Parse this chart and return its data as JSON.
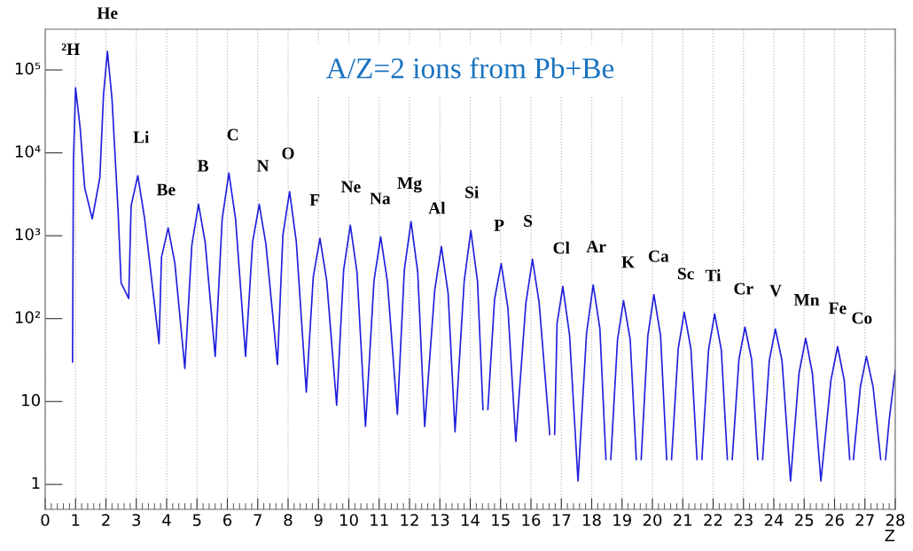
{
  "chart_data": {
    "type": "line",
    "title": "A/Z=2 ions from Pb+Be",
    "xlabel": "Z",
    "log": "y",
    "grid": "x",
    "marker": "none",
    "line_style": "solid",
    "xlim": [
      0,
      28
    ],
    "xticks": [
      0,
      1,
      2,
      3,
      4,
      5,
      6,
      7,
      8,
      9,
      10,
      11,
      12,
      13,
      14,
      15,
      16,
      17,
      18,
      19,
      20,
      21,
      22,
      23,
      24,
      25,
      26,
      27,
      28
    ],
    "ylim": [
      0.5,
      310000
    ],
    "yticks": [
      1,
      10,
      {
        "value": 100,
        "label": "10²"
      },
      {
        "value": 1000,
        "label": "10³"
      },
      {
        "value": 10000,
        "label": "10⁴"
      },
      {
        "value": 100000,
        "label": "10⁵"
      }
    ],
    "series": [
      {
        "color": "#1f1fdd",
        "x": [
          0.9,
          0.93,
          1.0,
          1.15,
          1.3,
          1.55,
          1.8,
          1.92,
          2.05,
          2.2,
          2.4,
          2.5,
          2.75,
          2.83,
          3.05,
          3.27,
          3.75,
          3.83,
          4.05,
          4.27,
          4.6,
          4.83,
          5.05,
          5.27,
          5.6,
          5.83,
          6.05,
          6.27,
          6.6,
          6.83,
          7.05,
          7.27,
          7.65,
          7.83,
          8.05,
          8.27,
          8.6,
          8.83,
          9.05,
          9.27,
          9.6,
          9.83,
          10.05,
          10.27,
          10.55,
          10.83,
          11.05,
          11.27,
          11.6,
          11.83,
          12.05,
          12.27,
          12.5,
          12.83,
          13.05,
          13.27,
          13.5,
          13.8,
          14.02,
          14.24,
          14.42,
          14.5,
          14.58,
          14.8,
          15.02,
          15.24,
          15.5,
          15.83,
          16.05,
          16.27,
          16.62,
          16.7,
          16.78,
          16.86,
          17.05,
          17.27,
          17.55,
          17.83,
          18.05,
          18.27,
          18.47,
          18.55,
          18.63,
          18.85,
          19.05,
          19.27,
          19.47,
          19.55,
          19.63,
          19.85,
          20.05,
          20.27,
          20.47,
          20.55,
          20.63,
          20.85,
          21.05,
          21.27,
          21.47,
          21.55,
          21.63,
          21.85,
          22.05,
          22.27,
          22.47,
          22.55,
          22.63,
          22.85,
          23.05,
          23.27,
          23.47,
          23.55,
          23.63,
          23.85,
          24.05,
          24.27,
          24.55,
          24.83,
          25.05,
          25.27,
          25.55,
          25.88,
          26.1,
          26.32,
          26.5,
          26.55,
          26.62,
          26.85,
          27.05,
          27.27,
          27.52,
          27.6,
          27.68,
          27.8,
          28
        ],
        "values": [
          30,
          8000,
          61000,
          20000,
          3800,
          1600,
          5000,
          50000,
          167000,
          45000,
          2000,
          270,
          175,
          2300,
          5300,
          1660,
          50,
          550,
          1240,
          470,
          25,
          770,
          2400,
          830,
          35,
          1600,
          5700,
          1600,
          35,
          830,
          2400,
          790,
          28,
          1020,
          3400,
          850,
          13,
          320,
          930,
          290,
          9,
          385,
          1340,
          365,
          5,
          285,
          970,
          285,
          7,
          390,
          1480,
          365,
          5,
          220,
          740,
          205,
          4.3,
          280,
          1150,
          280,
          8,
          null,
          8,
          170,
          460,
          135,
          3.3,
          150,
          520,
          155,
          4,
          null,
          4,
          87,
          245,
          64,
          1.1,
          66,
          255,
          76,
          2,
          null,
          2,
          55,
          165,
          55,
          2,
          null,
          2,
          62,
          195,
          62,
          2,
          null,
          2,
          43,
          120,
          43,
          2,
          null,
          2,
          42,
          114,
          42,
          2,
          null,
          2,
          32,
          79,
          32,
          2,
          null,
          2,
          31,
          75,
          31,
          1.1,
          22,
          58,
          22,
          1.1,
          18,
          46,
          18,
          2,
          null,
          2,
          15,
          35,
          15,
          2,
          null,
          2,
          6,
          24
        ]
      }
    ],
    "annotations": [
      {
        "text": "²H",
        "x": 0.84,
        "y": 61000
      },
      {
        "text": "He",
        "x": 2.05,
        "y": 167000
      },
      {
        "text": "Li",
        "x": 3.16,
        "y": 5300
      },
      {
        "text": "Be",
        "x": 3.98,
        "y": 1240
      },
      {
        "text": "B",
        "x": 5.2,
        "y": 2400
      },
      {
        "text": "C",
        "x": 6.18,
        "y": 5700
      },
      {
        "text": "N",
        "x": 7.17,
        "y": 2400
      },
      {
        "text": "O",
        "x": 8.0,
        "y": 3400
      },
      {
        "text": "F",
        "x": 8.88,
        "y": 930
      },
      {
        "text": "Ne",
        "x": 10.07,
        "y": 1340
      },
      {
        "text": "Na",
        "x": 11.03,
        "y": 970
      },
      {
        "text": "Mg",
        "x": 12.0,
        "y": 1480
      },
      {
        "text": "Al",
        "x": 12.9,
        "y": 740
      },
      {
        "text": "Si",
        "x": 14.05,
        "y": 1150
      },
      {
        "text": "P",
        "x": 14.95,
        "y": 460
      },
      {
        "text": "S",
        "x": 15.9,
        "y": 520
      },
      {
        "text": "Cl",
        "x": 17.0,
        "y": 245
      },
      {
        "text": "Ar",
        "x": 18.15,
        "y": 255
      },
      {
        "text": "K",
        "x": 19.2,
        "y": 165
      },
      {
        "text": "Ca",
        "x": 20.2,
        "y": 195
      },
      {
        "text": "Sc",
        "x": 21.1,
        "y": 120
      },
      {
        "text": "Ti",
        "x": 22.0,
        "y": 114
      },
      {
        "text": "Cr",
        "x": 23.0,
        "y": 79
      },
      {
        "text": "V",
        "x": 24.06,
        "y": 75
      },
      {
        "text": "Mn",
        "x": 25.08,
        "y": 58
      },
      {
        "text": "Fe",
        "x": 26.1,
        "y": 46
      },
      {
        "text": "Co",
        "x": 26.9,
        "y": 35
      }
    ]
  }
}
